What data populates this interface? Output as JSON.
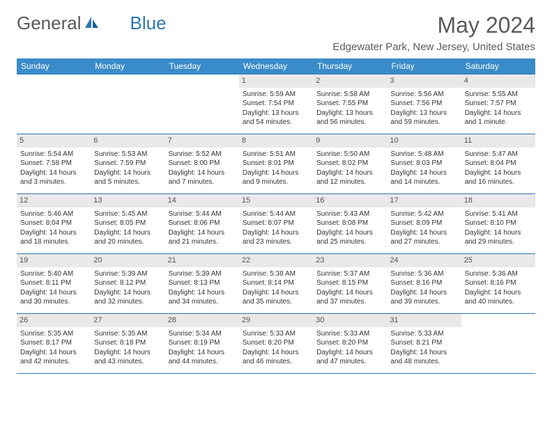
{
  "logo": {
    "text_gray": "General",
    "text_blue": "Blue"
  },
  "title": "May 2024",
  "location": "Edgewater Park, New Jersey, United States",
  "header_bg": "#3a8bc9",
  "daynum_bg": "#e9e9e9",
  "border_color": "#2e75b6",
  "day_headers": [
    "Sunday",
    "Monday",
    "Tuesday",
    "Wednesday",
    "Thursday",
    "Friday",
    "Saturday"
  ],
  "weeks": [
    [
      null,
      null,
      null,
      {
        "n": "1",
        "sr": "5:59 AM",
        "ss": "7:54 PM",
        "dl": "13 hours and 54 minutes."
      },
      {
        "n": "2",
        "sr": "5:58 AM",
        "ss": "7:55 PM",
        "dl": "13 hours and 56 minutes."
      },
      {
        "n": "3",
        "sr": "5:56 AM",
        "ss": "7:56 PM",
        "dl": "13 hours and 59 minutes."
      },
      {
        "n": "4",
        "sr": "5:55 AM",
        "ss": "7:57 PM",
        "dl": "14 hours and 1 minute."
      }
    ],
    [
      {
        "n": "5",
        "sr": "5:54 AM",
        "ss": "7:58 PM",
        "dl": "14 hours and 3 minutes."
      },
      {
        "n": "6",
        "sr": "5:53 AM",
        "ss": "7:59 PM",
        "dl": "14 hours and 5 minutes."
      },
      {
        "n": "7",
        "sr": "5:52 AM",
        "ss": "8:00 PM",
        "dl": "14 hours and 7 minutes."
      },
      {
        "n": "8",
        "sr": "5:51 AM",
        "ss": "8:01 PM",
        "dl": "14 hours and 9 minutes."
      },
      {
        "n": "9",
        "sr": "5:50 AM",
        "ss": "8:02 PM",
        "dl": "14 hours and 12 minutes."
      },
      {
        "n": "10",
        "sr": "5:48 AM",
        "ss": "8:03 PM",
        "dl": "14 hours and 14 minutes."
      },
      {
        "n": "11",
        "sr": "5:47 AM",
        "ss": "8:04 PM",
        "dl": "14 hours and 16 minutes."
      }
    ],
    [
      {
        "n": "12",
        "sr": "5:46 AM",
        "ss": "8:04 PM",
        "dl": "14 hours and 18 minutes."
      },
      {
        "n": "13",
        "sr": "5:45 AM",
        "ss": "8:05 PM",
        "dl": "14 hours and 20 minutes."
      },
      {
        "n": "14",
        "sr": "5:44 AM",
        "ss": "8:06 PM",
        "dl": "14 hours and 21 minutes."
      },
      {
        "n": "15",
        "sr": "5:44 AM",
        "ss": "8:07 PM",
        "dl": "14 hours and 23 minutes."
      },
      {
        "n": "16",
        "sr": "5:43 AM",
        "ss": "8:08 PM",
        "dl": "14 hours and 25 minutes."
      },
      {
        "n": "17",
        "sr": "5:42 AM",
        "ss": "8:09 PM",
        "dl": "14 hours and 27 minutes."
      },
      {
        "n": "18",
        "sr": "5:41 AM",
        "ss": "8:10 PM",
        "dl": "14 hours and 29 minutes."
      }
    ],
    [
      {
        "n": "19",
        "sr": "5:40 AM",
        "ss": "8:11 PM",
        "dl": "14 hours and 30 minutes."
      },
      {
        "n": "20",
        "sr": "5:39 AM",
        "ss": "8:12 PM",
        "dl": "14 hours and 32 minutes."
      },
      {
        "n": "21",
        "sr": "5:39 AM",
        "ss": "8:13 PM",
        "dl": "14 hours and 34 minutes."
      },
      {
        "n": "22",
        "sr": "5:38 AM",
        "ss": "8:14 PM",
        "dl": "14 hours and 35 minutes."
      },
      {
        "n": "23",
        "sr": "5:37 AM",
        "ss": "8:15 PM",
        "dl": "14 hours and 37 minutes."
      },
      {
        "n": "24",
        "sr": "5:36 AM",
        "ss": "8:16 PM",
        "dl": "14 hours and 39 minutes."
      },
      {
        "n": "25",
        "sr": "5:36 AM",
        "ss": "8:16 PM",
        "dl": "14 hours and 40 minutes."
      }
    ],
    [
      {
        "n": "26",
        "sr": "5:35 AM",
        "ss": "8:17 PM",
        "dl": "14 hours and 42 minutes."
      },
      {
        "n": "27",
        "sr": "5:35 AM",
        "ss": "8:18 PM",
        "dl": "14 hours and 43 minutes."
      },
      {
        "n": "28",
        "sr": "5:34 AM",
        "ss": "8:19 PM",
        "dl": "14 hours and 44 minutes."
      },
      {
        "n": "29",
        "sr": "5:33 AM",
        "ss": "8:20 PM",
        "dl": "14 hours and 46 minutes."
      },
      {
        "n": "30",
        "sr": "5:33 AM",
        "ss": "8:20 PM",
        "dl": "14 hours and 47 minutes."
      },
      {
        "n": "31",
        "sr": "5:33 AM",
        "ss": "8:21 PM",
        "dl": "14 hours and 48 minutes."
      },
      null
    ]
  ],
  "labels": {
    "sunrise": "Sunrise: ",
    "sunset": "Sunset: ",
    "daylight": "Daylight: "
  }
}
